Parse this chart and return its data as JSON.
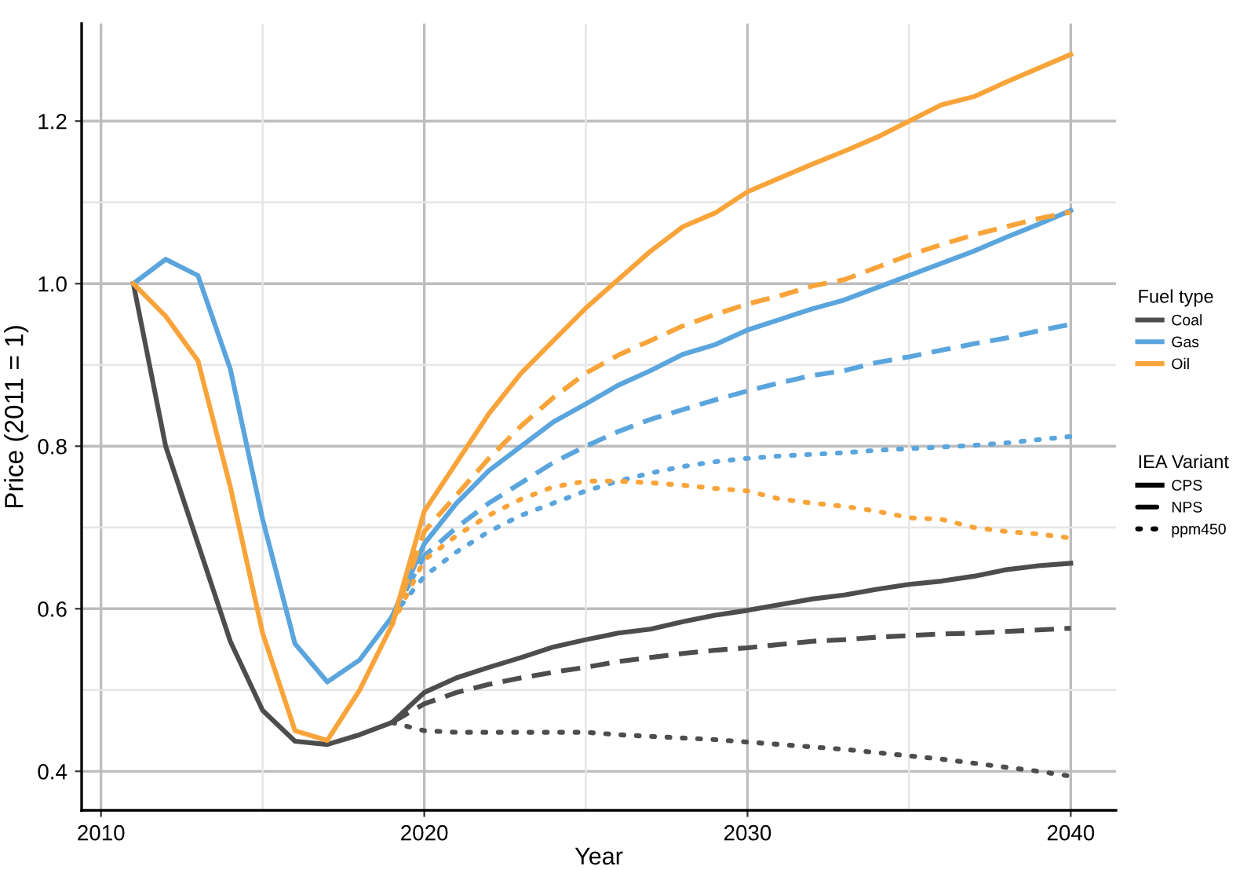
{
  "chart_data": {
    "type": "line",
    "xlabel": "Year",
    "ylabel": "Price (2011 = 1)",
    "legend_title": [
      "Fuel type",
      "IEA Variant"
    ],
    "annotations": [
      "CPS",
      "NPS",
      "ppm450"
    ],
    "xlim": [
      2009.4,
      2041.4
    ],
    "xticks": [
      2010,
      2020,
      2030,
      2040
    ],
    "ylim": [
      0.352,
      1.32
    ],
    "yticks": [
      0.4,
      0.6,
      0.8,
      {
        "value": 1.0,
        "label": "1.0"
      },
      1.2
    ],
    "grid": true,
    "legend": "right",
    "marker": "none",
    "series": [
      {
        "name": "Coal",
        "color": "#4d4d4d",
        "line_style": "solid",
        "x": [
          2011,
          2012,
          2013,
          2014,
          2015,
          2016,
          2017,
          2018,
          2019,
          2020,
          2021,
          2022,
          2023,
          2024,
          2025,
          2026,
          2027,
          2028,
          2029,
          2030,
          2031,
          2032,
          2033,
          2034,
          2035,
          2036,
          2037,
          2038,
          2039,
          2040
        ],
        "values": [
          1.0,
          0.8,
          0.68,
          0.56,
          0.475,
          0.437,
          0.433,
          0.445,
          0.46,
          0.497,
          0.515,
          0.528,
          0.54,
          0.553,
          0.562,
          0.57,
          0.575,
          0.584,
          0.592,
          0.598,
          0.605,
          0.612,
          0.617,
          0.624,
          0.63,
          0.634,
          0.64,
          0.648,
          0.653,
          0.656
        ]
      },
      {
        "color": "#4d4d4d",
        "line_style": "dashed",
        "x": [
          2019,
          2020,
          2021,
          2022,
          2023,
          2024,
          2025,
          2026,
          2027,
          2028,
          2029,
          2030,
          2031,
          2032,
          2033,
          2034,
          2035,
          2036,
          2037,
          2038,
          2039,
          2040
        ],
        "values": [
          0.46,
          0.483,
          0.497,
          0.507,
          0.515,
          0.522,
          0.528,
          0.535,
          0.54,
          0.545,
          0.549,
          0.552,
          0.556,
          0.56,
          0.562,
          0.565,
          0.567,
          0.569,
          0.57,
          0.572,
          0.574,
          0.576
        ]
      },
      {
        "color": "#4d4d4d",
        "line_style": "dotted",
        "x": [
          2019,
          2020,
          2021,
          2022,
          2023,
          2024,
          2025,
          2026,
          2027,
          2028,
          2029,
          2030,
          2031,
          2032,
          2033,
          2034,
          2035,
          2036,
          2037,
          2038,
          2039,
          2040
        ],
        "values": [
          0.46,
          0.45,
          0.448,
          0.448,
          0.448,
          0.448,
          0.448,
          0.445,
          0.443,
          0.441,
          0.439,
          0.436,
          0.433,
          0.43,
          0.427,
          0.423,
          0.419,
          0.415,
          0.41,
          0.405,
          0.4,
          0.394
        ]
      },
      {
        "name": "Gas",
        "color": "#5aa5dd",
        "line_style": "solid",
        "x": [
          2011,
          2012,
          2013,
          2014,
          2015,
          2016,
          2017,
          2018,
          2019,
          2020,
          2021,
          2022,
          2023,
          2024,
          2025,
          2026,
          2027,
          2028,
          2029,
          2030,
          2031,
          2032,
          2033,
          2034,
          2035,
          2036,
          2037,
          2038,
          2039,
          2040
        ],
        "values": [
          1.0,
          1.03,
          1.01,
          0.895,
          0.71,
          0.557,
          0.51,
          0.537,
          0.59,
          0.68,
          0.73,
          0.77,
          0.8,
          0.83,
          0.852,
          0.875,
          0.893,
          0.913,
          0.925,
          0.943,
          0.956,
          0.969,
          0.98,
          0.995,
          1.01,
          1.025,
          1.04,
          1.057,
          1.073,
          1.09
        ]
      },
      {
        "color": "#5aa5dd",
        "line_style": "dashed",
        "x": [
          2019,
          2020,
          2021,
          2022,
          2023,
          2024,
          2025,
          2026,
          2027,
          2028,
          2029,
          2030,
          2031,
          2032,
          2033,
          2034,
          2035,
          2036,
          2037,
          2038,
          2039,
          2040
        ],
        "values": [
          0.59,
          0.665,
          0.7,
          0.73,
          0.755,
          0.78,
          0.8,
          0.818,
          0.833,
          0.845,
          0.857,
          0.868,
          0.878,
          0.887,
          0.893,
          0.903,
          0.91,
          0.918,
          0.926,
          0.933,
          0.942,
          0.95
        ]
      },
      {
        "color": "#5aa5dd",
        "line_style": "dotted",
        "x": [
          2019,
          2020,
          2021,
          2022,
          2023,
          2024,
          2025,
          2026,
          2027,
          2028,
          2029,
          2030,
          2031,
          2032,
          2033,
          2034,
          2035,
          2036,
          2037,
          2038,
          2039,
          2040
        ],
        "values": [
          0.59,
          0.64,
          0.67,
          0.695,
          0.715,
          0.73,
          0.745,
          0.757,
          0.767,
          0.775,
          0.781,
          0.785,
          0.788,
          0.79,
          0.792,
          0.795,
          0.797,
          0.799,
          0.801,
          0.804,
          0.808,
          0.812
        ]
      },
      {
        "name": "Oil",
        "color": "#f9a43a",
        "line_style": "solid",
        "x": [
          2011,
          2012,
          2013,
          2014,
          2015,
          2016,
          2017,
          2018,
          2019,
          2020,
          2021,
          2022,
          2023,
          2024,
          2025,
          2026,
          2027,
          2028,
          2029,
          2030,
          2031,
          2032,
          2033,
          2034,
          2035,
          2036,
          2037,
          2038,
          2039,
          2040
        ],
        "values": [
          1.0,
          0.96,
          0.905,
          0.75,
          0.57,
          0.45,
          0.438,
          0.5,
          0.58,
          0.72,
          0.78,
          0.84,
          0.89,
          0.93,
          0.97,
          1.005,
          1.04,
          1.07,
          1.087,
          1.113,
          1.13,
          1.147,
          1.163,
          1.18,
          1.2,
          1.22,
          1.23,
          1.248,
          1.265,
          1.282
        ]
      },
      {
        "color": "#f9a43a",
        "line_style": "dashed",
        "x": [
          2019,
          2020,
          2021,
          2022,
          2023,
          2024,
          2025,
          2026,
          2027,
          2028,
          2029,
          2030,
          2031,
          2032,
          2033,
          2034,
          2035,
          2036,
          2037,
          2038,
          2039,
          2040
        ],
        "values": [
          0.58,
          0.695,
          0.74,
          0.785,
          0.825,
          0.86,
          0.89,
          0.912,
          0.93,
          0.948,
          0.962,
          0.975,
          0.985,
          0.997,
          1.005,
          1.02,
          1.035,
          1.048,
          1.06,
          1.07,
          1.08,
          1.088
        ]
      },
      {
        "color": "#f9a43a",
        "line_style": "dotted",
        "x": [
          2019,
          2020,
          2021,
          2022,
          2023,
          2024,
          2025,
          2026,
          2027,
          2028,
          2029,
          2030,
          2031,
          2032,
          2033,
          2034,
          2035,
          2036,
          2037,
          2038,
          2039,
          2040
        ],
        "values": [
          0.58,
          0.66,
          0.69,
          0.715,
          0.735,
          0.75,
          0.757,
          0.757,
          0.755,
          0.752,
          0.748,
          0.745,
          0.735,
          0.73,
          0.726,
          0.72,
          0.712,
          0.71,
          0.7,
          0.695,
          0.692,
          0.687
        ]
      }
    ]
  }
}
